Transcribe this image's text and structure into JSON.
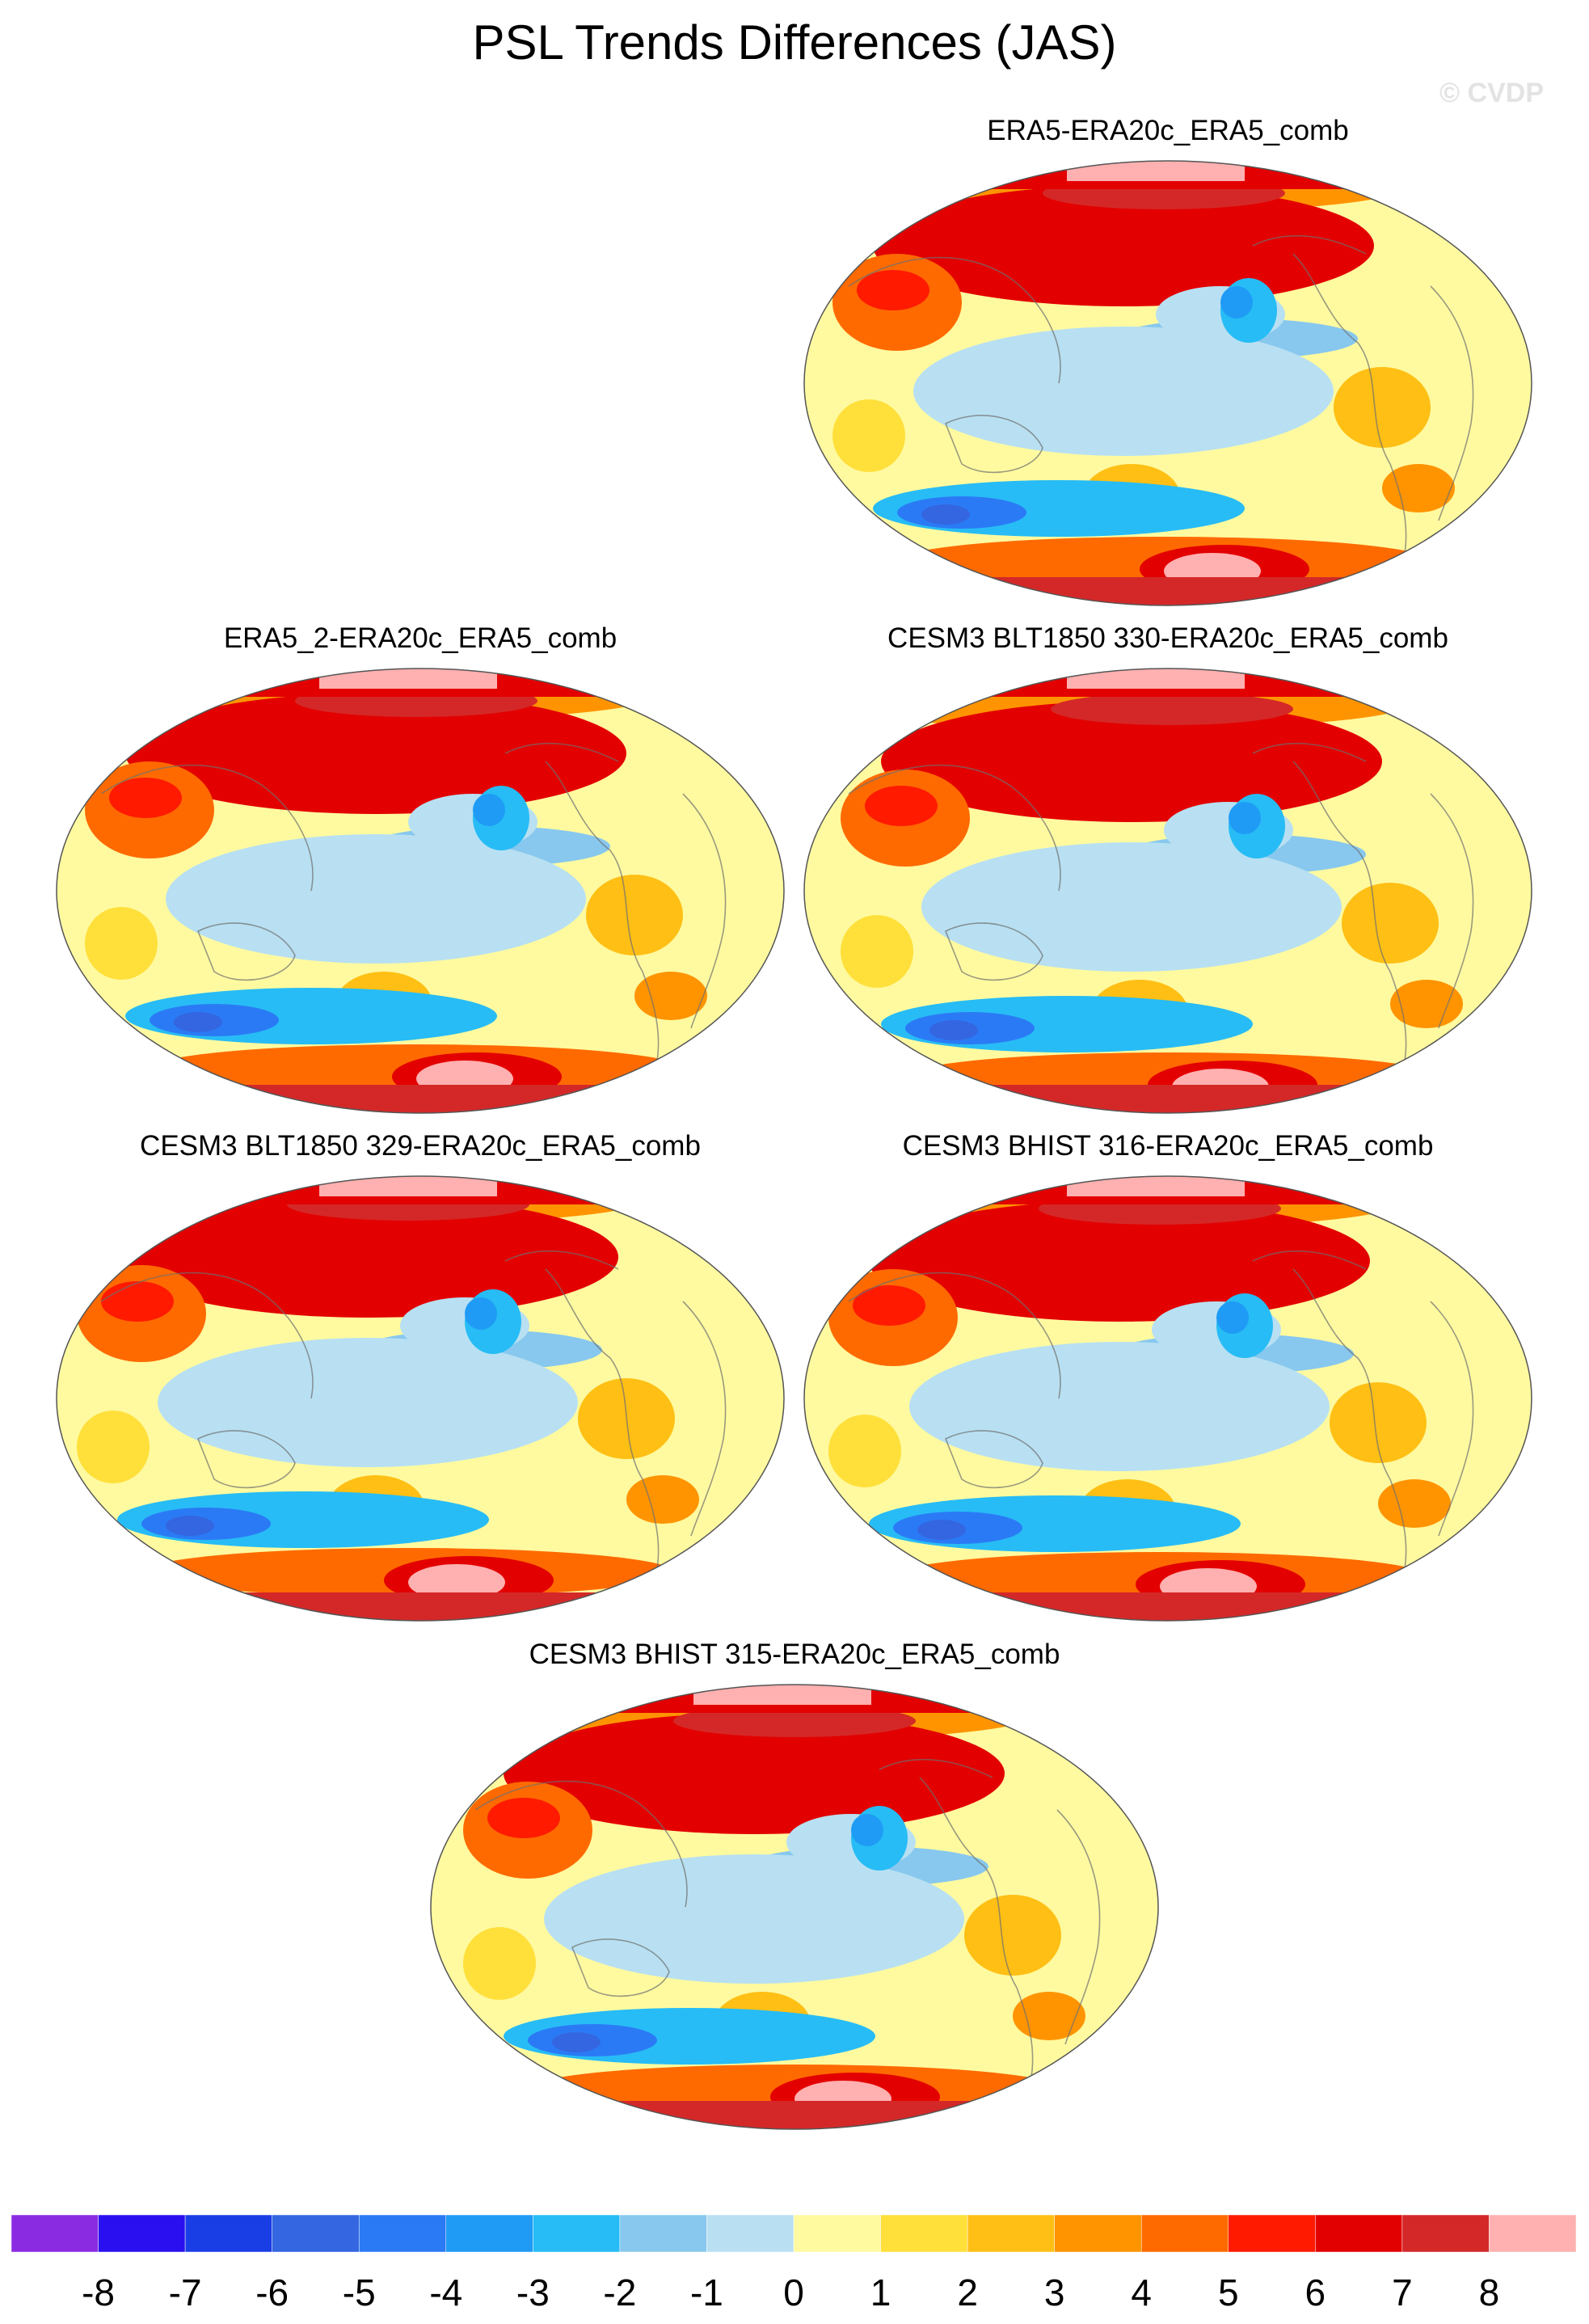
{
  "figure": {
    "title": "PSL Trends Differences (JAS)",
    "watermark": "© CVDP"
  },
  "panels": [
    {
      "id": "p1",
      "title": "ERA5-ERA20c_ERA5_comb"
    },
    {
      "id": "p2",
      "title": "ERA5_2-ERA20c_ERA5_comb"
    },
    {
      "id": "p3",
      "title": "CESM3 BLT1850 330-ERA20c_ERA5_comb"
    },
    {
      "id": "p4",
      "title": "CESM3 BLT1850 329-ERA20c_ERA5_comb"
    },
    {
      "id": "p5",
      "title": "CESM3 BHIST 316-ERA20c_ERA5_comb"
    },
    {
      "id": "p6",
      "title": "CESM3 BHIST 315-ERA20c_ERA5_comb"
    }
  ],
  "colorbar": {
    "colors": [
      "#8a2be2",
      "#2a10f0",
      "#1a3ee6",
      "#3366e0",
      "#2b7af5",
      "#1f9bf5",
      "#27bcf5",
      "#88c8ee",
      "#b8e0f2",
      "#fffaa0",
      "#ffdf3a",
      "#ffbf14",
      "#ff9400",
      "#ff6a00",
      "#ff1a00",
      "#e30000",
      "#d42828",
      "#ffb0b0"
    ],
    "labels": [
      "-8",
      "-7",
      "-6",
      "-5",
      "-4",
      "-3",
      "-2",
      "-1",
      "0",
      "1",
      "2",
      "3",
      "4",
      "5",
      "6",
      "7",
      "8"
    ]
  }
}
